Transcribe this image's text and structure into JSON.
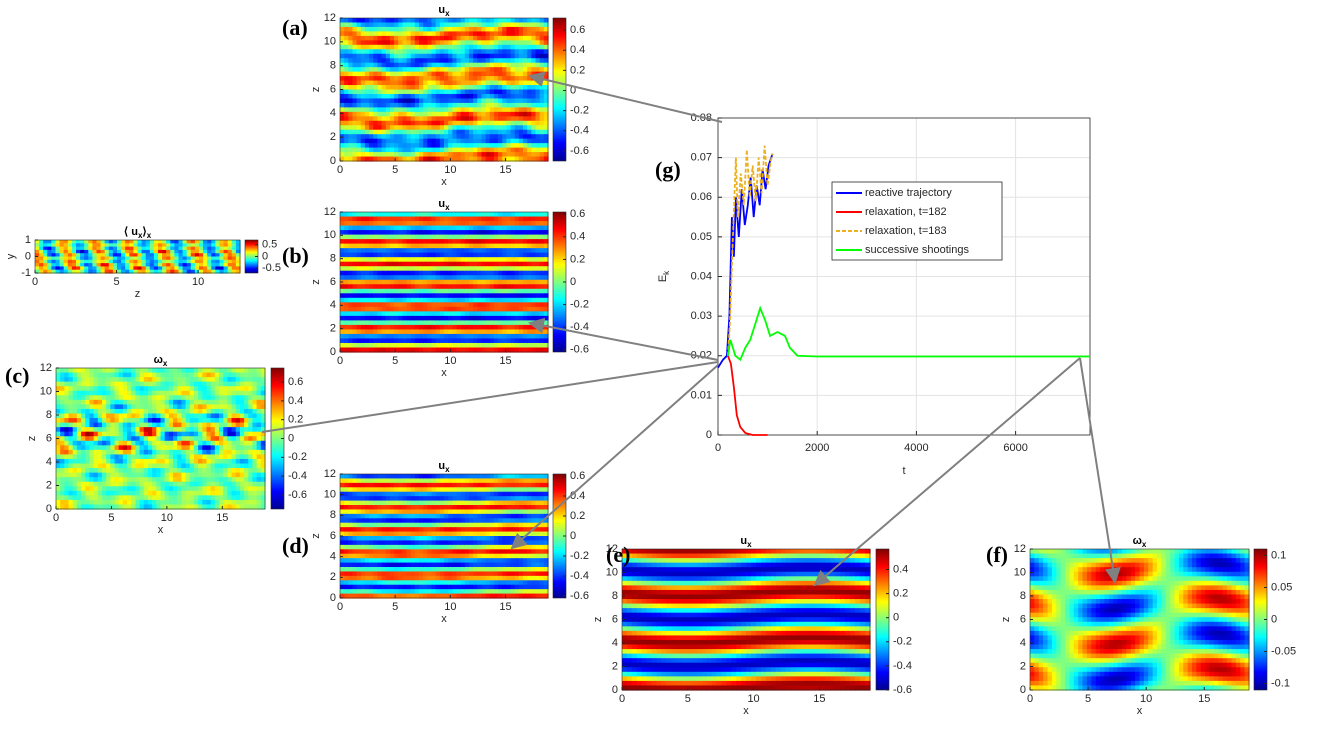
{
  "chart_data": [
    {
      "type": "heatmap",
      "panel_label": "(a)",
      "title_parts": [
        {
          "text": "u"
        },
        {
          "text": "x",
          "subscript": true
        }
      ],
      "xlabel": "x",
      "ylabel": "z",
      "xlim": [
        0,
        18.85
      ],
      "xticks": [
        0,
        5,
        10,
        15
      ],
      "ylim": [
        0,
        12
      ],
      "yticks": [
        0,
        2,
        4,
        6,
        8,
        10,
        12
      ],
      "clim": [
        -0.7,
        0.72
      ],
      "cticks": [
        0.6,
        0.4,
        0.2,
        0,
        -0.2,
        -0.4,
        -0.6
      ]
    },
    {
      "type": "heatmap",
      "panel_label": "(b)",
      "title_parts": [
        {
          "text": "u"
        },
        {
          "text": "x",
          "subscript": true
        }
      ],
      "xlabel": "x",
      "ylabel": "z",
      "xlim": [
        0,
        18.85
      ],
      "xticks": [
        0,
        5,
        10,
        15
      ],
      "ylim": [
        0,
        12
      ],
      "yticks": [
        0,
        2,
        4,
        6,
        8,
        10,
        12
      ],
      "clim": [
        -0.62,
        0.62
      ],
      "cticks": [
        0.6,
        0.4,
        0.2,
        0,
        -0.2,
        -0.4,
        -0.6
      ]
    },
    {
      "type": "heatmap",
      "title_parts": [
        {
          "text": "⟨ u"
        },
        {
          "text": "x",
          "subscript": true
        },
        {
          "text": "⟩"
        },
        {
          "text": "x",
          "subscript": true
        }
      ],
      "xlabel": "z",
      "ylabel": "y",
      "xlim": [
        0,
        12.57
      ],
      "xticks": [
        0,
        5,
        10
      ],
      "ylim": [
        -1,
        1
      ],
      "yticks": [
        -1,
        0,
        1
      ],
      "clim": [
        -0.7,
        0.7
      ],
      "cticks": [
        0.5,
        0,
        -0.5
      ]
    },
    {
      "type": "heatmap",
      "panel_label": "(c)",
      "title_parts": [
        {
          "text": "ω"
        },
        {
          "text": "x",
          "subscript": true
        }
      ],
      "xlabel": "x",
      "ylabel": "z",
      "xlim": [
        0,
        18.85
      ],
      "xticks": [
        0,
        5,
        10,
        15
      ],
      "ylim": [
        0,
        12
      ],
      "yticks": [
        0,
        2,
        4,
        6,
        8,
        10,
        12
      ],
      "clim": [
        -0.75,
        0.75
      ],
      "cticks": [
        0.6,
        0.4,
        0.2,
        0,
        -0.2,
        -0.4,
        -0.6
      ]
    },
    {
      "type": "heatmap",
      "panel_label": "(d)",
      "title_parts": [
        {
          "text": "u"
        },
        {
          "text": "x",
          "subscript": true
        }
      ],
      "xlabel": "x",
      "ylabel": "z",
      "xlim": [
        0,
        18.85
      ],
      "xticks": [
        0,
        5,
        10,
        15
      ],
      "ylim": [
        0,
        12
      ],
      "yticks": [
        0,
        2,
        4,
        6,
        8,
        10,
        12
      ],
      "clim": [
        -0.62,
        0.62
      ],
      "cticks": [
        0.6,
        0.4,
        0.2,
        0,
        -0.2,
        -0.4,
        -0.6
      ]
    },
    {
      "type": "heatmap",
      "panel_label": "(e)",
      "title_parts": [
        {
          "text": "u"
        },
        {
          "text": "x",
          "subscript": true
        }
      ],
      "xlabel": "x",
      "ylabel": "z",
      "xlim": [
        0,
        18.85
      ],
      "xticks": [
        0,
        5,
        10,
        15
      ],
      "ylim": [
        0,
        12
      ],
      "yticks": [
        0,
        2,
        4,
        6,
        8,
        10,
        12
      ],
      "clim": [
        -0.6,
        0.57
      ],
      "cticks": [
        0.4,
        0.2,
        0,
        -0.2,
        -0.4,
        -0.6
      ]
    },
    {
      "type": "heatmap",
      "panel_label": "(f)",
      "title_parts": [
        {
          "text": "ω"
        },
        {
          "text": "x",
          "subscript": true
        }
      ],
      "xlabel": "x",
      "ylabel": "z",
      "xlim": [
        0,
        18.85
      ],
      "xticks": [
        0,
        5,
        10,
        15
      ],
      "ylim": [
        0,
        12
      ],
      "yticks": [
        0,
        2,
        4,
        6,
        8,
        10,
        12
      ],
      "clim": [
        -0.11,
        0.11
      ],
      "cticks": [
        0.1,
        0.05,
        0,
        -0.05,
        -0.1
      ]
    },
    {
      "type": "line",
      "panel_label": "(g)",
      "xlabel": "t",
      "ylabel_parts": [
        {
          "text": "E"
        },
        {
          "text": "k",
          "subscript": true
        }
      ],
      "xlim": [
        0,
        7500
      ],
      "xticks": [
        0,
        2000,
        4000,
        6000
      ],
      "ylim": [
        0,
        0.08
      ],
      "yticks": [
        0,
        0.01,
        0.02,
        0.03,
        0.04,
        0.05,
        0.06,
        0.07,
        0.08
      ],
      "grid": true,
      "series": [
        {
          "name": "reactive trajectory",
          "color": "#0000ff",
          "x": [
            0,
            100,
            180,
            230,
            280,
            320,
            360,
            420,
            480,
            540,
            600,
            660,
            720,
            780,
            840,
            900,
            960,
            1020,
            1100
          ],
          "values": [
            0.017,
            0.019,
            0.02,
            0.03,
            0.055,
            0.045,
            0.06,
            0.05,
            0.062,
            0.053,
            0.058,
            0.065,
            0.055,
            0.063,
            0.058,
            0.067,
            0.062,
            0.068,
            0.071
          ]
        },
        {
          "name": "relaxation, t=182",
          "color": "#ff0000",
          "x": [
            200,
            260,
            320,
            380,
            450,
            550,
            700,
            1000
          ],
          "values": [
            0.02,
            0.018,
            0.012,
            0.005,
            0.002,
            0.0005,
            0,
            0
          ]
        },
        {
          "name": "relaxation, t=183",
          "color": "#edb120",
          "dashed": true,
          "x": [
            200,
            240,
            300,
            360,
            400,
            460,
            520,
            580,
            640,
            700,
            760,
            820,
            880,
            940,
            1000,
            1060,
            1100
          ],
          "values": [
            0.02,
            0.028,
            0.05,
            0.07,
            0.055,
            0.066,
            0.058,
            0.072,
            0.06,
            0.068,
            0.059,
            0.07,
            0.061,
            0.073,
            0.063,
            0.069,
            0.071
          ]
        },
        {
          "name": "successive shootings",
          "color": "#00ff00",
          "x": [
            200,
            250,
            350,
            450,
            550,
            650,
            750,
            850,
            950,
            1050,
            1200,
            1350,
            1450,
            1600,
            2000,
            7500
          ],
          "values": [
            0.02,
            0.024,
            0.02,
            0.019,
            0.022,
            0.024,
            0.028,
            0.032,
            0.029,
            0.025,
            0.026,
            0.025,
            0.022,
            0.02,
            0.0198,
            0.0198
          ]
        }
      ]
    }
  ]
}
